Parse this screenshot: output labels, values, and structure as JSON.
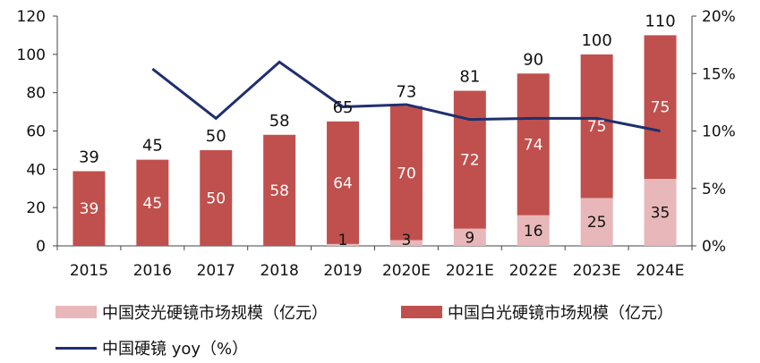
{
  "chart_data": {
    "type": "bar+line",
    "categories": [
      "2015",
      "2016",
      "2017",
      "2018",
      "2019",
      "2020E",
      "2021E",
      "2022E",
      "2023E",
      "2024E"
    ],
    "series": [
      {
        "name": "中国荧光硬镜市场规模（亿元）",
        "type": "stacked-bar",
        "axis": "left",
        "values": [
          0,
          0,
          0,
          0,
          1,
          3,
          9,
          16,
          25,
          35
        ],
        "color": "#E8B7B9"
      },
      {
        "name": "中国白光硬镜市场规模（亿元）",
        "type": "stacked-bar",
        "axis": "left",
        "values": [
          39,
          45,
          50,
          58,
          64,
          70,
          72,
          74,
          75,
          75
        ],
        "color": "#C0504D"
      },
      {
        "name": "中国硬镜 yoy（%）",
        "type": "line",
        "axis": "right",
        "values": [
          null,
          15.4,
          11.1,
          16.0,
          12.1,
          12.3,
          11.0,
          11.1,
          11.1,
          10.0
        ],
        "color": "#1F2F6E"
      }
    ],
    "totals": [
      39,
      45,
      50,
      58,
      65,
      73,
      81,
      90,
      100,
      110
    ],
    "fluor_labels": [
      "",
      "",
      "",
      "",
      "1",
      "3",
      "9",
      "16",
      "25",
      "35"
    ],
    "white_labels": [
      "39",
      "45",
      "50",
      "58",
      "64",
      "70",
      "72",
      "74",
      "75",
      "75"
    ],
    "y_left": {
      "min": 0,
      "max": 120,
      "ticks": [
        0,
        20,
        40,
        60,
        80,
        100,
        120
      ]
    },
    "y_right": {
      "min": 0,
      "max": 20,
      "ticks": [
        "0%",
        "5%",
        "10%",
        "15%",
        "20%"
      ],
      "tick_values": [
        0,
        5,
        10,
        15,
        20
      ]
    },
    "legend_position": "bottom"
  },
  "legend": {
    "fluor_label": "中国荧光硬镜市场规模（亿元）",
    "white_label": "中国白光硬镜市场规模（亿元）",
    "yoy_label": "中国硬镜 yoy（%）"
  }
}
